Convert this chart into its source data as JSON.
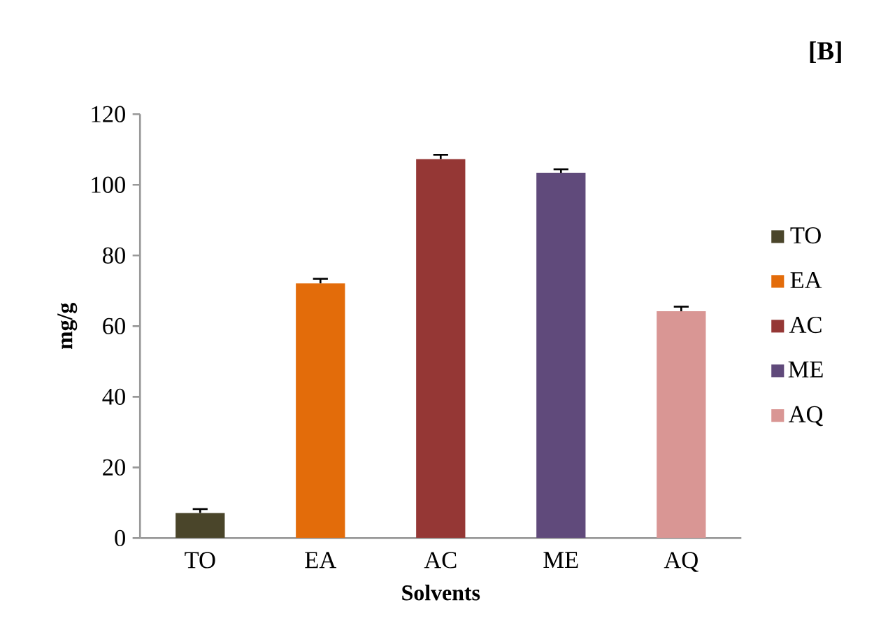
{
  "chart_data": {
    "type": "bar",
    "title": "[B]",
    "xlabel": "Solvents",
    "ylabel": "mg/g",
    "categories": [
      "TO",
      "EA",
      "AC",
      "ME",
      "AQ"
    ],
    "series": [
      {
        "name": "TO",
        "color": "#4a452a",
        "values": [
          7.1,
          null,
          null,
          null,
          null
        ],
        "errors": [
          1.1,
          null,
          null,
          null,
          null
        ]
      },
      {
        "name": "EA",
        "color": "#e36c0a",
        "values": [
          null,
          72.1,
          null,
          null,
          null
        ],
        "errors": [
          null,
          1.3,
          null,
          null,
          null
        ]
      },
      {
        "name": "AC",
        "color": "#953735",
        "values": [
          null,
          null,
          107.3,
          null,
          null
        ],
        "errors": [
          null,
          null,
          1.2,
          null,
          null
        ]
      },
      {
        "name": "ME",
        "color": "#604a7b",
        "values": [
          null,
          null,
          null,
          103.4,
          null
        ],
        "errors": [
          null,
          null,
          null,
          1.0,
          null
        ]
      },
      {
        "name": "AQ",
        "color": "#d99694",
        "values": [
          null,
          null,
          null,
          null,
          64.2
        ],
        "errors": [
          null,
          null,
          null,
          null,
          1.3
        ]
      }
    ],
    "ylim": [
      0,
      120
    ],
    "yticks": [
      0,
      20,
      40,
      60,
      80,
      100,
      120
    ],
    "grid": false,
    "legend": "right"
  }
}
